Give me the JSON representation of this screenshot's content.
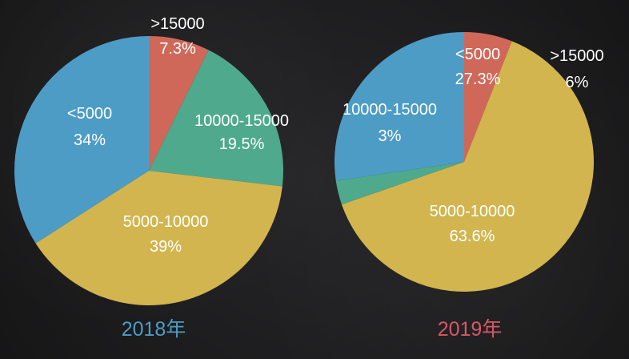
{
  "chart_data": [
    {
      "type": "pie",
      "title": "2018年",
      "title_color": "#4d9cc6",
      "slices": [
        {
          "label": ">15000",
          "value": 7.3,
          "value_text": "7.3%",
          "color": "#d0685a"
        },
        {
          "label": "10000-15000",
          "value": 19.5,
          "value_text": "19.5%",
          "color": "#4fa98c"
        },
        {
          "label": "5000-10000",
          "value": 39,
          "value_text": "39%",
          "color": "#d2b54f"
        },
        {
          "label": "<5000",
          "value": 34,
          "value_text": "34%",
          "color": "#4d9cc6"
        }
      ]
    },
    {
      "type": "pie",
      "title": "2019年",
      "title_color": "#d85865",
      "slices": [
        {
          "label": ">15000",
          "value": 6,
          "value_text": "6%",
          "color": "#d0685a"
        },
        {
          "label": "5000-10000",
          "value": 63.6,
          "value_text": "63.6%",
          "color": "#d2b54f"
        },
        {
          "label": "10000-15000",
          "value": 3,
          "value_text": "3%",
          "color": "#4fa98c"
        },
        {
          "label": "<5000",
          "value": 27.3,
          "value_text": "27.3%",
          "color": "#4d9cc6"
        }
      ]
    }
  ]
}
